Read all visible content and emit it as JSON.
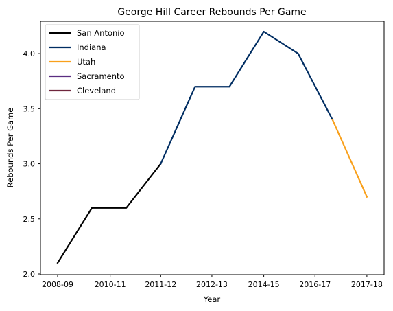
{
  "chart_data": {
    "type": "line",
    "title": "George Hill  Career Rebounds Per Game",
    "xlabel": "Year",
    "ylabel": "Rebounds Per Game",
    "x_tick_labels": [
      "2008-09",
      "2010-11",
      "2011-12",
      "2012-13",
      "2014-15",
      "2016-17",
      "2017-18"
    ],
    "ylim": [
      2.0,
      4.25
    ],
    "y_ticks": [
      2.0,
      2.5,
      3.0,
      3.5,
      4.0
    ],
    "y_tick_labels": [
      "2.0",
      "2.5",
      "3.0",
      "3.5",
      "4.0"
    ],
    "grid": false,
    "legend_position": "top-left",
    "series": [
      {
        "name": "San Antonio",
        "color": "#000000",
        "values": [
          2.1,
          2.6,
          2.6,
          3.0
        ],
        "x_index": [
          0,
          1,
          2,
          3
        ]
      },
      {
        "name": "Indiana",
        "color": "#002d62",
        "values": [
          3.0,
          3.7,
          3.7,
          4.2,
          4.0,
          3.4
        ],
        "x_index": [
          3,
          4,
          5,
          6,
          7,
          8
        ]
      },
      {
        "name": "Utah",
        "color": "#f9a01b",
        "values": [
          3.4,
          2.7
        ],
        "x_index": [
          8,
          9
        ]
      },
      {
        "name": "Sacramento",
        "color": "#5a2d81",
        "values": [],
        "x_index": []
      },
      {
        "name": "Cleveland",
        "color": "#6f263d",
        "values": [],
        "x_index": []
      }
    ]
  }
}
